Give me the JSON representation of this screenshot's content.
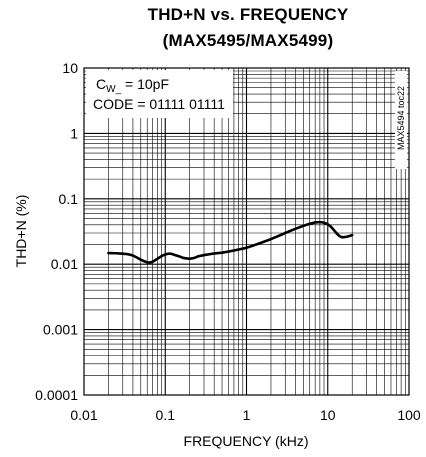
{
  "chart_data": {
    "type": "line",
    "title_line1": "THD+N vs. FREQUENCY",
    "title_line2": "(MAX5495/MAX5499)",
    "xlabel": "FREQUENCY (kHz)",
    "ylabel": "THD+N (%)",
    "xscale": "log",
    "yscale": "log",
    "xlim": [
      0.01,
      100
    ],
    "ylim": [
      0.0001,
      10
    ],
    "x_tick_labels": [
      "0.01",
      "0.1",
      "1",
      "10",
      "100"
    ],
    "y_tick_labels": [
      "0.0001",
      "0.001",
      "0.01",
      "0.1",
      "1",
      "10"
    ],
    "grid": true,
    "annotation": {
      "line1_prefix": "C",
      "line1_sub": "W_",
      "line1_suffix": " = 10pF",
      "line2": "CODE = 01111 01111"
    },
    "code_label": "MAX5494 toc22",
    "series": [
      {
        "x": [
          0.02,
          0.025,
          0.03,
          0.035,
          0.04,
          0.045,
          0.05,
          0.055,
          0.06,
          0.065,
          0.07,
          0.08,
          0.09,
          0.1,
          0.11,
          0.12,
          0.13,
          0.15,
          0.17,
          0.2,
          0.23,
          0.25,
          0.3,
          0.35,
          0.4,
          0.5,
          0.6,
          0.7,
          0.8,
          1.0,
          1.2,
          1.5,
          2,
          2.5,
          3,
          3.5,
          4,
          5,
          6,
          7,
          8,
          9,
          10,
          11,
          12,
          13,
          14,
          15,
          17,
          20
        ],
        "y": [
          0.0148,
          0.0147,
          0.0145,
          0.0142,
          0.0136,
          0.0126,
          0.0117,
          0.0111,
          0.0107,
          0.0106,
          0.0109,
          0.0121,
          0.0133,
          0.0141,
          0.0145,
          0.0144,
          0.0139,
          0.0131,
          0.0124,
          0.0121,
          0.0125,
          0.0131,
          0.0138,
          0.0142,
          0.0146,
          0.015,
          0.0156,
          0.0162,
          0.0168,
          0.0178,
          0.0192,
          0.0212,
          0.0242,
          0.0272,
          0.03,
          0.0325,
          0.0348,
          0.0385,
          0.0415,
          0.0435,
          0.044,
          0.0432,
          0.0408,
          0.0372,
          0.0328,
          0.0292,
          0.0268,
          0.0258,
          0.0262,
          0.0278
        ]
      }
    ]
  }
}
